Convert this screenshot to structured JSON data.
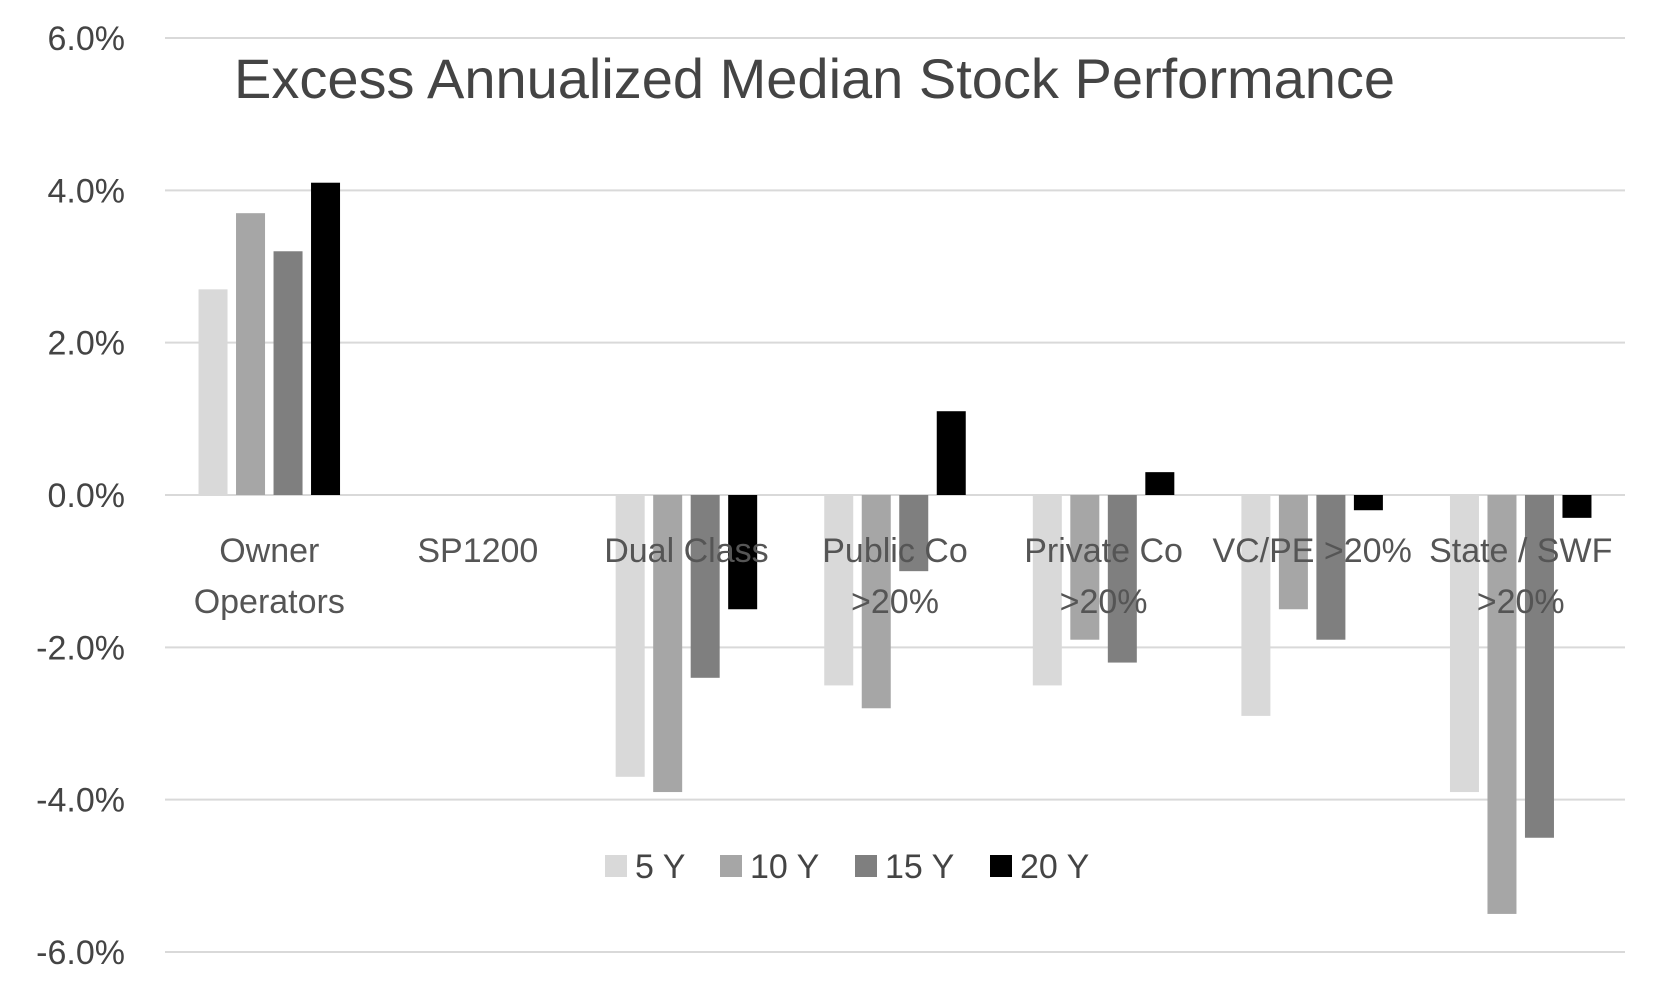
{
  "chart_data": {
    "type": "bar",
    "title": "Excess Annualized Median Stock Performance",
    "xlabel": "",
    "ylabel": "",
    "ylim": [
      -6.0,
      6.0
    ],
    "yticks": [
      6.0,
      4.0,
      2.0,
      0.0,
      -2.0,
      -4.0,
      -6.0
    ],
    "ytick_labels": [
      "6.0%",
      "4.0%",
      "2.0%",
      "0.0%",
      "-2.0%",
      "-4.0%",
      "-6.0%"
    ],
    "grid": true,
    "legend_position": "bottom-center",
    "categories": [
      [
        "Owner",
        "Operators"
      ],
      [
        "SP1200"
      ],
      [
        "Dual Class"
      ],
      [
        "Public Co",
        ">20%"
      ],
      [
        "Private Co",
        ">20%"
      ],
      [
        "VC/PE >20%"
      ],
      [
        "State / SWF",
        ">20%"
      ]
    ],
    "series": [
      {
        "name": "5 Y",
        "color": "#d9d9d9",
        "values": [
          2.7,
          0.0,
          -3.7,
          -2.5,
          -2.5,
          -2.9,
          -3.9
        ]
      },
      {
        "name": "10 Y",
        "color": "#a6a6a6",
        "values": [
          3.7,
          0.0,
          -3.9,
          -2.8,
          -1.9,
          -1.5,
          -5.5
        ]
      },
      {
        "name": "15 Y",
        "color": "#7f7f7f",
        "values": [
          3.2,
          0.0,
          -2.4,
          -1.0,
          -2.2,
          -1.9,
          -4.5
        ]
      },
      {
        "name": "20 Y",
        "color": "#000000",
        "values": [
          4.1,
          0.0,
          -1.5,
          1.1,
          0.3,
          -0.2,
          -0.3
        ]
      }
    ]
  }
}
